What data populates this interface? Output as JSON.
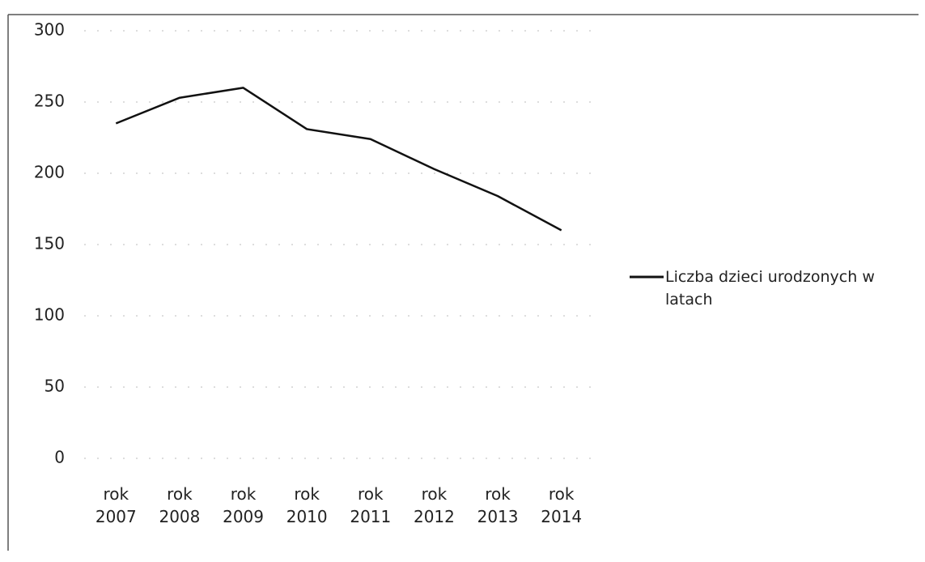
{
  "chart_data": {
    "type": "line",
    "categories": [
      "rok 2007",
      "rok 2008",
      "rok 2009",
      "rok 2010",
      "rok 2011",
      "rok 2012",
      "rok 2013",
      "rok 2014"
    ],
    "series": [
      {
        "name": "Liczba dzieci urodzonych w latach",
        "color": "#111111",
        "values": [
          235,
          253,
          260,
          231,
          224,
          203,
          184,
          160
        ]
      }
    ],
    "ylim": [
      0,
      300
    ],
    "yticks": [
      0,
      50,
      100,
      150,
      200,
      250,
      300
    ],
    "grid": true,
    "legend": "right"
  }
}
